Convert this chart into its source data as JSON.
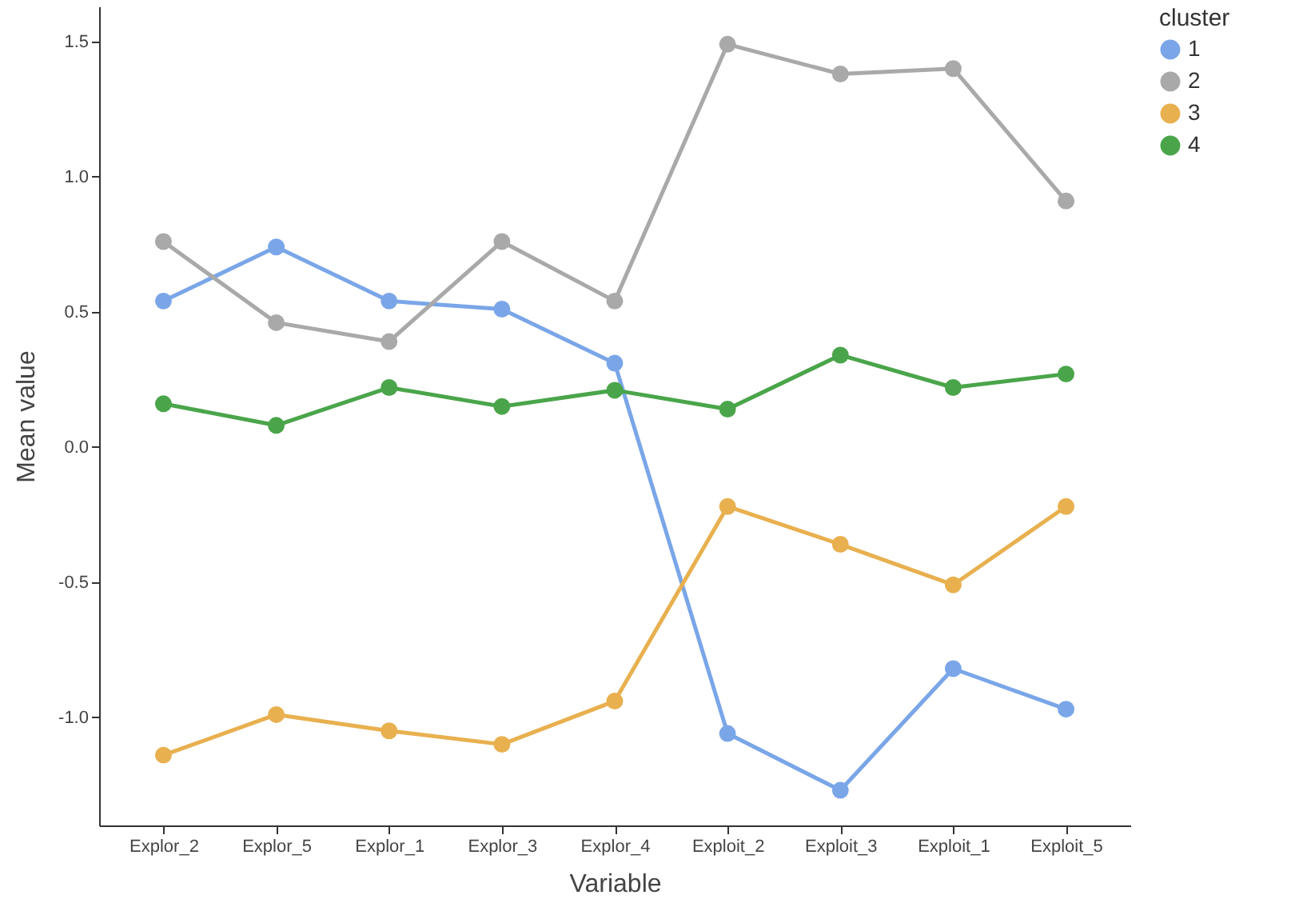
{
  "chart_data": {
    "type": "line",
    "xlabel": "Variable",
    "ylabel": "Mean value",
    "legend_title": "cluster",
    "legend": "right",
    "grid": false,
    "marker": "circle",
    "line_style": "solid",
    "categories": [
      "Explor_2",
      "Explor_5",
      "Explor_1",
      "Explor_3",
      "Explor_4",
      "Exploit_2",
      "Exploit_3",
      "Exploit_1",
      "Exploit_5"
    ],
    "ylim": [
      -1.4,
      1.63
    ],
    "yticks": [
      {
        "value": -1,
        "label": "-1.0"
      },
      {
        "value": -0.5,
        "label": "-0.5"
      },
      {
        "value": 0,
        "label": "0.0"
      },
      {
        "value": 0.5,
        "label": "0.5"
      },
      {
        "value": 1,
        "label": "1.0"
      },
      {
        "value": 1.5,
        "label": "1.5"
      }
    ],
    "series": [
      {
        "name": "1",
        "color": "#7aa6e8",
        "values": [
          0.54,
          0.74,
          0.54,
          0.51,
          0.31,
          -1.06,
          -1.27,
          -0.82,
          -0.97
        ]
      },
      {
        "name": "2",
        "color": "#a9a9a9",
        "values": [
          0.76,
          0.46,
          0.39,
          0.76,
          0.54,
          1.49,
          1.38,
          1.4,
          0.91
        ]
      },
      {
        "name": "3",
        "color": "#e8b04f",
        "values": [
          -1.14,
          -0.99,
          -1.05,
          -1.1,
          -0.94,
          -0.22,
          -0.36,
          -0.51,
          -0.22
        ]
      },
      {
        "name": "4",
        "color": "#4aa54a",
        "values": [
          0.16,
          0.08,
          0.22,
          0.15,
          0.21,
          0.14,
          0.34,
          0.22,
          0.27
        ]
      }
    ]
  }
}
